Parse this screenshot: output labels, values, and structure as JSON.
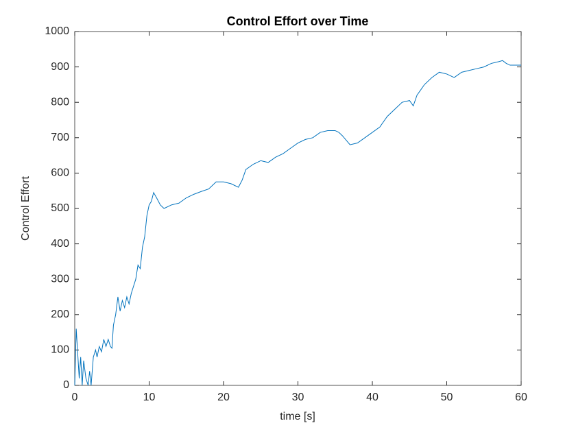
{
  "chart_data": {
    "type": "line",
    "title": "Control Effort over Time",
    "xlabel": "time [s]",
    "ylabel": "Control Effort",
    "x": [
      0,
      0.2,
      0.4,
      0.6,
      0.8,
      1.0,
      1.2,
      1.5,
      1.8,
      2.0,
      2.2,
      2.5,
      2.8,
      3.0,
      3.3,
      3.6,
      3.9,
      4.2,
      4.5,
      4.8,
      5.0,
      5.2,
      5.5,
      5.8,
      6.1,
      6.4,
      6.7,
      7.0,
      7.3,
      7.6,
      7.9,
      8.2,
      8.5,
      8.8,
      9.1,
      9.4,
      9.7,
      10.0,
      10.3,
      10.6,
      11.0,
      11.5,
      12,
      13,
      14,
      15,
      16,
      17,
      18,
      19,
      20,
      21,
      22,
      22.5,
      23,
      24,
      25,
      26,
      27,
      28,
      29,
      30,
      31,
      32,
      33,
      34,
      35,
      35.5,
      36,
      37,
      38,
      39,
      40,
      41,
      42,
      43,
      44,
      45,
      45.5,
      46,
      47,
      48,
      49,
      50,
      51,
      52,
      53,
      54,
      55,
      56,
      57,
      57.5,
      58,
      58.5,
      60
    ],
    "series": [
      {
        "name": "Control Effort",
        "color": "#0072bd",
        "values": [
          0,
          160,
          90,
          20,
          80,
          0,
          70,
          20,
          0,
          40,
          0,
          80,
          100,
          80,
          110,
          95,
          130,
          110,
          130,
          110,
          105,
          170,
          200,
          250,
          210,
          240,
          220,
          250,
          230,
          260,
          280,
          300,
          340,
          330,
          390,
          420,
          480,
          510,
          520,
          545,
          530,
          510,
          500,
          510,
          515,
          530,
          540,
          548,
          555,
          575,
          575,
          570,
          560,
          580,
          610,
          625,
          635,
          630,
          645,
          655,
          670,
          685,
          695,
          700,
          715,
          720,
          720,
          715,
          705,
          680,
          685,
          700,
          715,
          730,
          760,
          780,
          800,
          805,
          790,
          820,
          850,
          870,
          885,
          880,
          870,
          885,
          890,
          895,
          900,
          910,
          915,
          918,
          910,
          905,
          905
        ]
      }
    ],
    "xlim": [
      0,
      60
    ],
    "ylim": [
      0,
      1000
    ],
    "xticks": [
      0,
      10,
      20,
      30,
      40,
      50,
      60
    ],
    "yticks": [
      0,
      100,
      200,
      300,
      400,
      500,
      600,
      700,
      800,
      900,
      1000
    ]
  }
}
